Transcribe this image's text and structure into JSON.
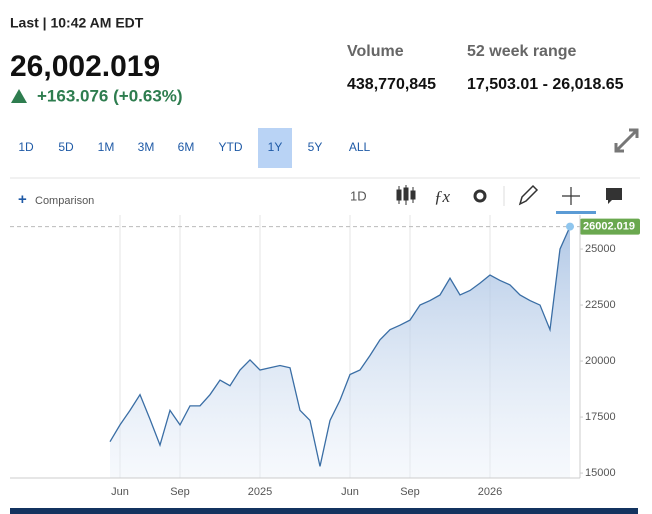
{
  "header": {
    "status": "Last | 10:42 AM EDT",
    "price": "26,002.019",
    "change": "+163.076 (+0.63%)",
    "stats": [
      {
        "label": "Volume",
        "value": "438,770,845"
      },
      {
        "label": "52 week range",
        "value": "17,503.01 - 26,018.65"
      }
    ]
  },
  "ranges": [
    "1D",
    "5D",
    "1M",
    "3M",
    "6M",
    "YTD",
    "1Y",
    "5Y",
    "ALL"
  ],
  "active_range": 6,
  "toolbar": {
    "comparison": "Comparison",
    "interval": "1D"
  },
  "chart_data": {
    "type": "line",
    "color": "#3a6ea5",
    "last_value": 26002.019,
    "categories": [
      null,
      "Jun",
      null,
      null,
      null,
      null,
      null,
      "Sep",
      null,
      null,
      null,
      null,
      null,
      null,
      null,
      "2025",
      null,
      null,
      null,
      null,
      null,
      null,
      null,
      null,
      "Jun",
      null,
      null,
      null,
      null,
      null,
      "Sep",
      null,
      null,
      null,
      null,
      null,
      null,
      null,
      "2026",
      null,
      null,
      null,
      null,
      null,
      null,
      null,
      null
    ],
    "values": [
      16400,
      17150,
      17800,
      18500,
      17400,
      16250,
      17800,
      17150,
      18000,
      18000,
      18500,
      19150,
      18900,
      19600,
      20050,
      19600,
      19700,
      19800,
      19700,
      17800,
      17350,
      15300,
      17350,
      18250,
      19400,
      19600,
      20250,
      20950,
      21400,
      21600,
      21830,
      22500,
      22700,
      22950,
      23700,
      22950,
      23150,
      23480,
      23840,
      23600,
      23400,
      22950,
      22700,
      22500,
      21400,
      25000,
      26002.019
    ],
    "ylim": [
      14780,
      26520
    ],
    "yticks": [
      15000,
      17500,
      20000,
      22500,
      25000
    ],
    "grid": true
  }
}
